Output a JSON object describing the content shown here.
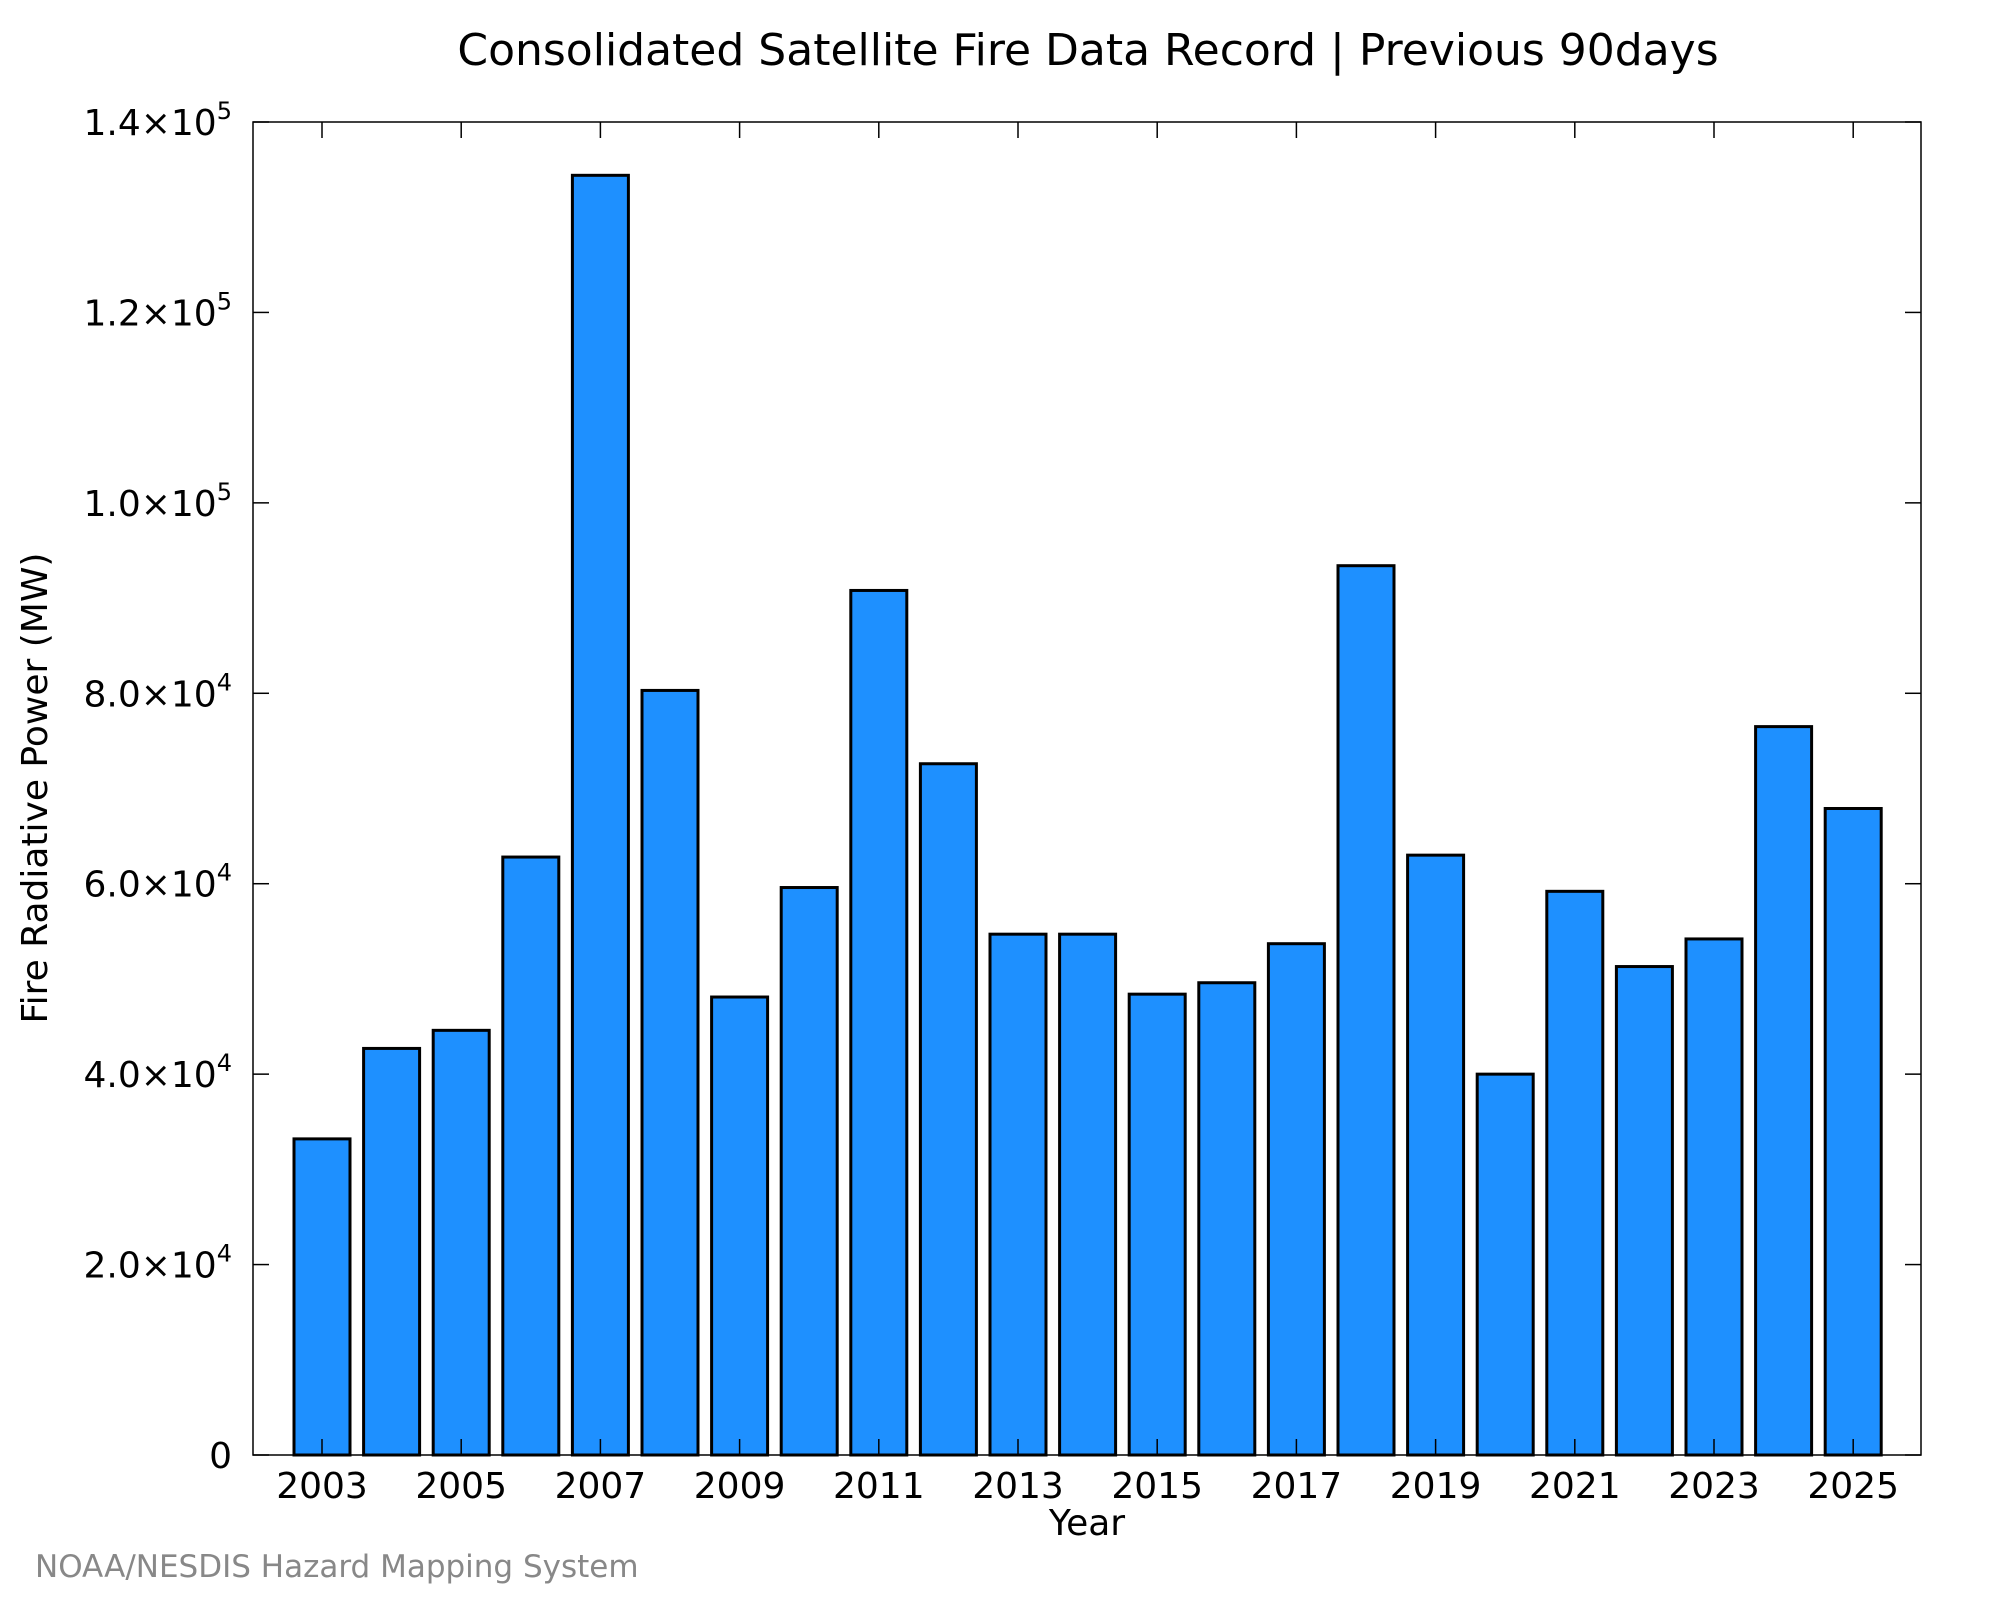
{
  "chart_data": {
    "type": "bar",
    "title": "Consolidated Satellite Fire Data Record | Previous 90days",
    "xlabel": "Year",
    "ylabel": "Fire Radiative Power (MW)",
    "categories": [
      "2003",
      "2004",
      "2005",
      "2006",
      "2007",
      "2008",
      "2009",
      "2010",
      "2011",
      "2012",
      "2013",
      "2014",
      "2015",
      "2016",
      "2017",
      "2018",
      "2019",
      "2020",
      "2021",
      "2022",
      "2023",
      "2024",
      "2025"
    ],
    "values": [
      33200,
      42700,
      44600,
      62800,
      134400,
      80300,
      48100,
      59600,
      90800,
      72600,
      54700,
      54700,
      48400,
      49600,
      53700,
      93400,
      63000,
      40000,
      59200,
      51300,
      54200,
      76500,
      67900
    ],
    "x_tick_labels": [
      "2003",
      "2005",
      "2007",
      "2009",
      "2011",
      "2013",
      "2015",
      "2017",
      "2019",
      "2021",
      "2023",
      "2025"
    ],
    "y_ticks": [
      {
        "value": 0,
        "mantissa": "0",
        "exp": ""
      },
      {
        "value": 20000,
        "mantissa": "2.0×10",
        "exp": "4"
      },
      {
        "value": 40000,
        "mantissa": "4.0×10",
        "exp": "4"
      },
      {
        "value": 60000,
        "mantissa": "6.0×10",
        "exp": "4"
      },
      {
        "value": 80000,
        "mantissa": "8.0×10",
        "exp": "4"
      },
      {
        "value": 100000,
        "mantissa": "1.0×10",
        "exp": "5"
      },
      {
        "value": 120000,
        "mantissa": "1.2×10",
        "exp": "5"
      },
      {
        "value": 140000,
        "mantissa": "1.4×10",
        "exp": "5"
      }
    ],
    "ylim": [
      0,
      140000
    ],
    "bar_color": "#1e90ff",
    "grid": false,
    "legend": "none"
  },
  "credit": "NOAA/NESDIS Hazard Mapping System"
}
